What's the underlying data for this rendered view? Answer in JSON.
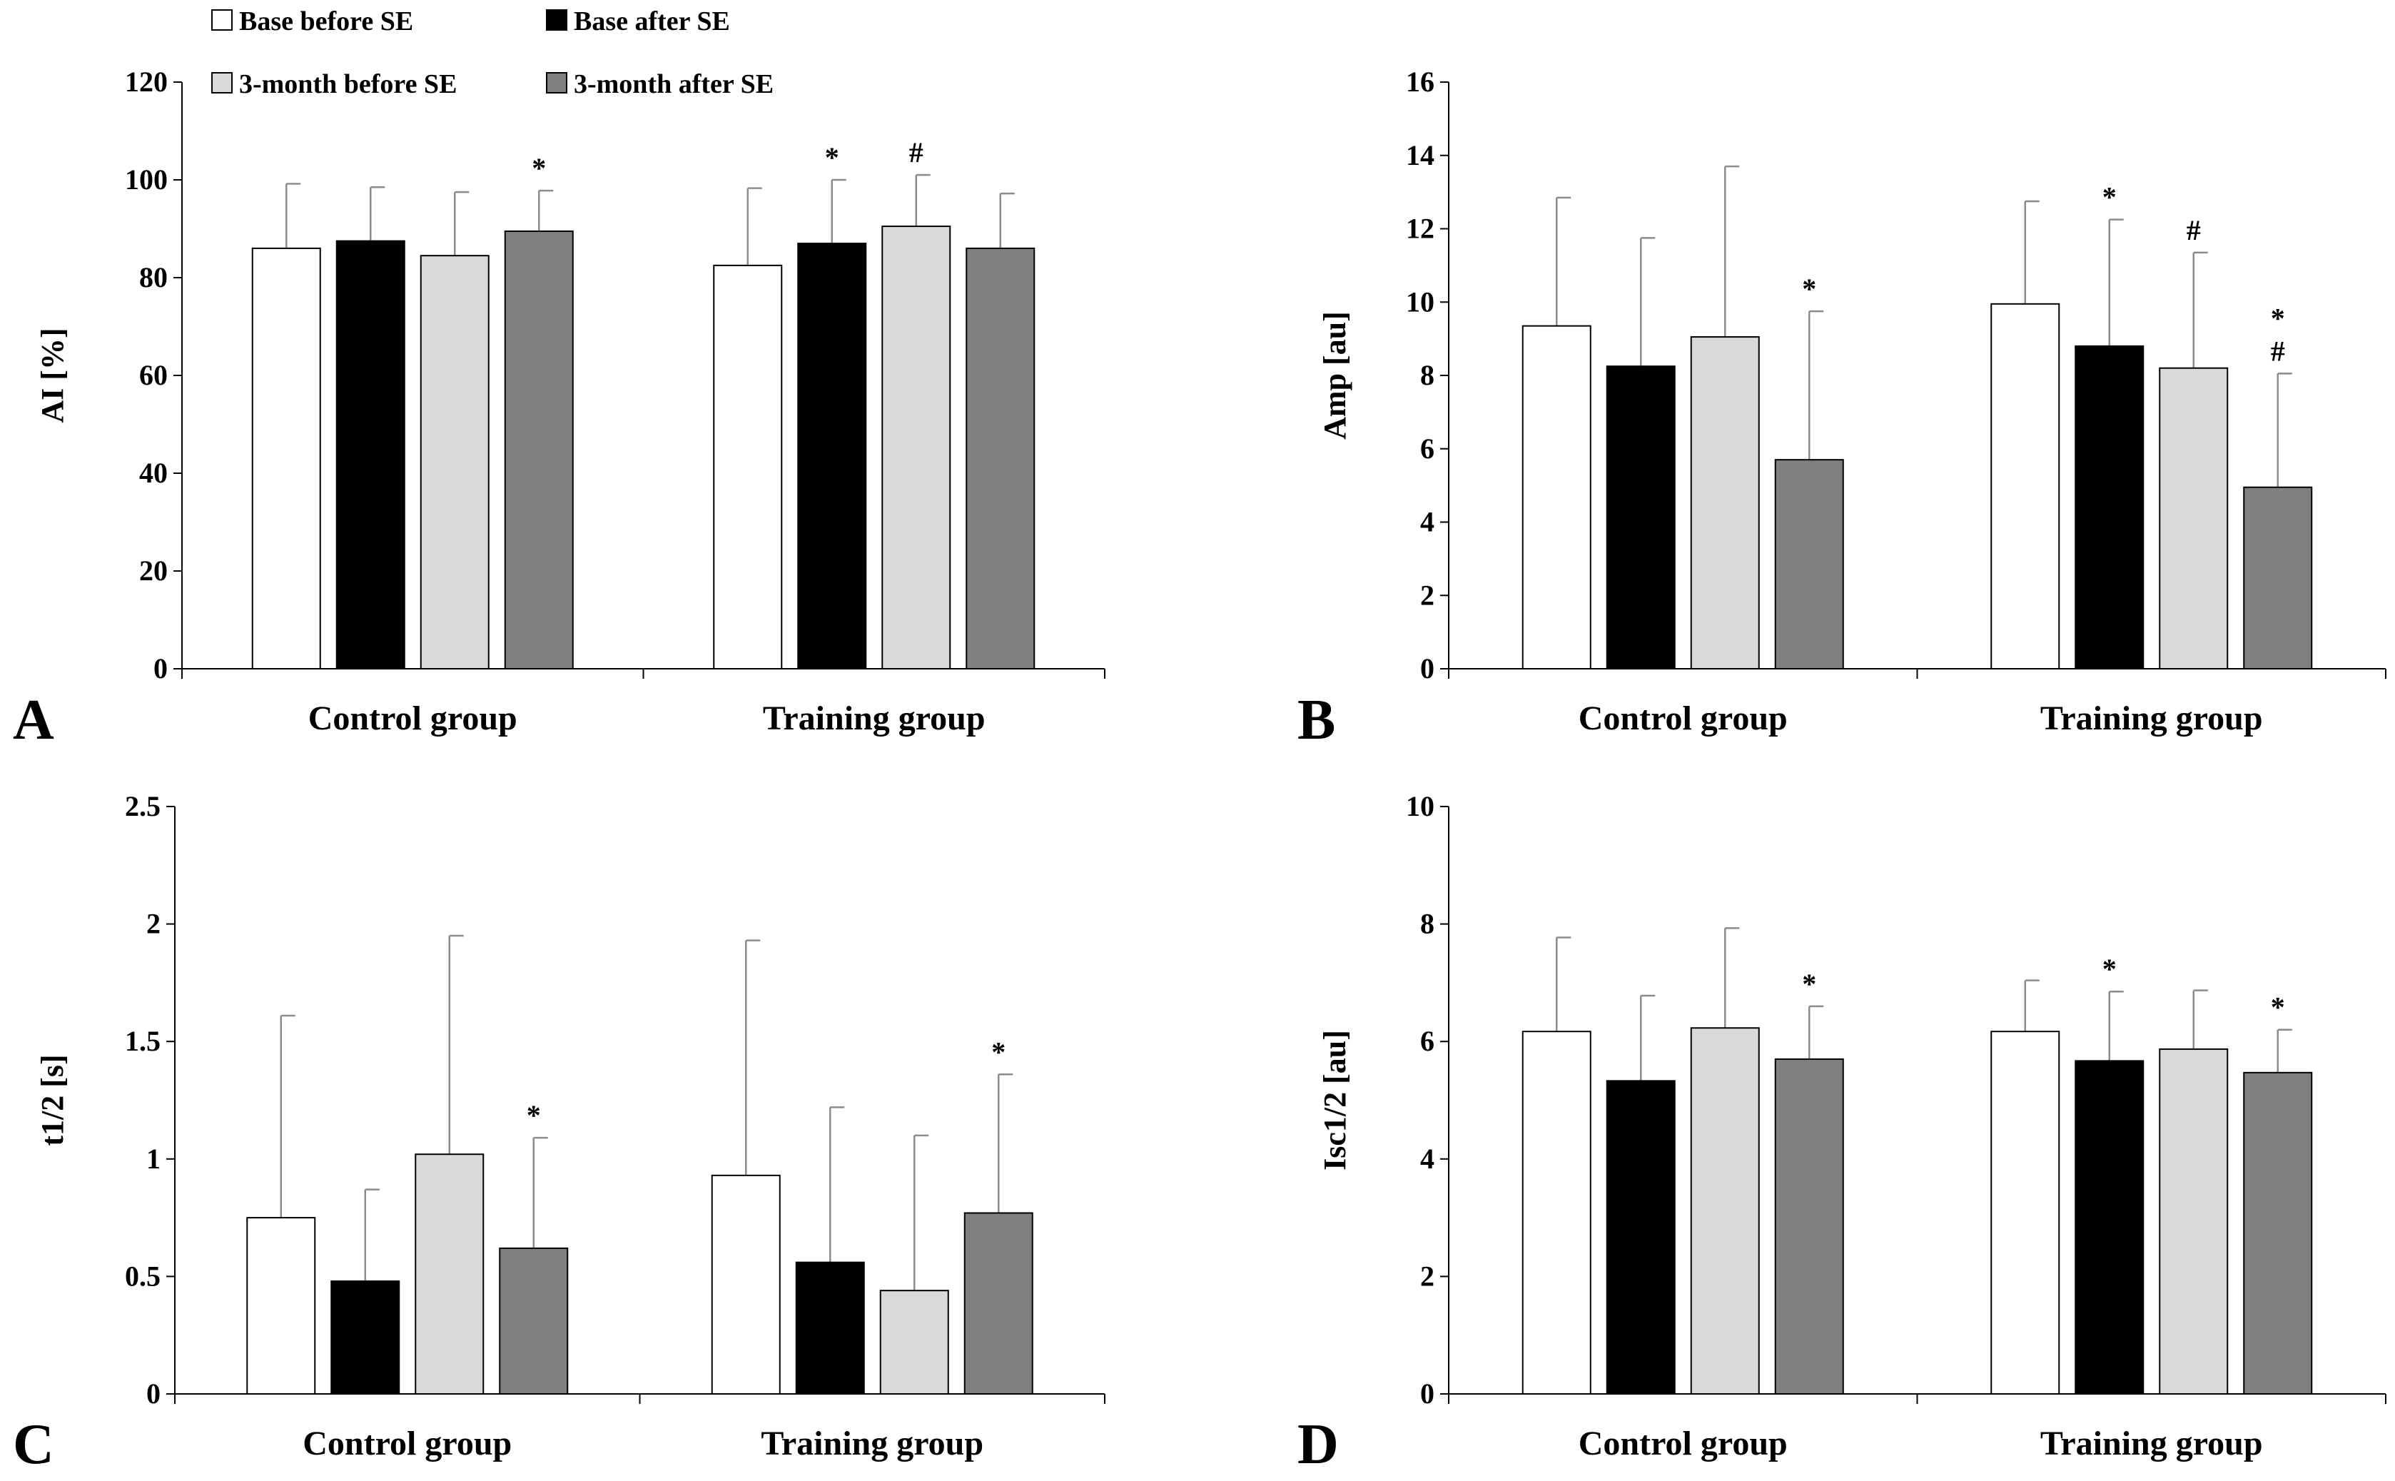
{
  "legend": [
    {
      "label": "Base before SE",
      "color": "#ffffff"
    },
    {
      "label": "Base after SE",
      "color": "#000000"
    },
    {
      "label": "3-month before SE",
      "color": "#d9d9d9"
    },
    {
      "label": "3-month after SE",
      "color": "#808080"
    }
  ],
  "chart_data": [
    {
      "type": "bar",
      "panel": "A",
      "ylabel": "AI [%]",
      "ylim": [
        0,
        120
      ],
      "yticks": [
        "0",
        "20",
        "40",
        "60",
        "80",
        "100",
        "120"
      ],
      "categories": [
        "Control group",
        "Training group"
      ],
      "series": [
        {
          "name": "Base before SE",
          "values": [
            86,
            82.5
          ],
          "errors": [
            13.2,
            15.8
          ]
        },
        {
          "name": "Base after SE",
          "values": [
            87.5,
            87
          ],
          "errors": [
            11,
            13
          ]
        },
        {
          "name": "3-month before SE",
          "values": [
            84.5,
            90.5
          ],
          "errors": [
            13,
            10.5
          ]
        },
        {
          "name": "3-month after SE",
          "values": [
            89.5,
            86
          ],
          "errors": [
            8.3,
            11.2
          ]
        }
      ],
      "annotations": [
        {
          "category": 0,
          "series": 3,
          "text": "*"
        },
        {
          "category": 1,
          "series": 1,
          "text": "*"
        },
        {
          "category": 1,
          "series": 2,
          "text": "#"
        }
      ]
    },
    {
      "type": "bar",
      "panel": "B",
      "ylabel": "Amp [au]",
      "ylim": [
        0,
        16
      ],
      "yticks": [
        "0",
        "2",
        "4",
        "6",
        "8",
        "10",
        "12",
        "14",
        "16"
      ],
      "categories": [
        "Control group",
        "Training group"
      ],
      "series": [
        {
          "name": "Base before SE",
          "values": [
            9.35,
            9.95
          ],
          "errors": [
            3.5,
            2.8
          ]
        },
        {
          "name": "Base after SE",
          "values": [
            8.25,
            8.8
          ],
          "errors": [
            3.5,
            3.45
          ]
        },
        {
          "name": "3-month before SE",
          "values": [
            9.05,
            8.2
          ],
          "errors": [
            4.65,
            3.15
          ]
        },
        {
          "name": "3-month after SE",
          "values": [
            5.7,
            4.95
          ],
          "errors": [
            4.05,
            3.1
          ]
        }
      ],
      "annotations": [
        {
          "category": 0,
          "series": 3,
          "text": "*"
        },
        {
          "category": 1,
          "series": 1,
          "text": "*"
        },
        {
          "category": 1,
          "series": 2,
          "text": "#"
        },
        {
          "category": 1,
          "series": 3,
          "text": "#"
        },
        {
          "category": 1,
          "series": 3,
          "text": "*"
        }
      ]
    },
    {
      "type": "bar",
      "panel": "C",
      "ylabel": "t1/2 [s]",
      "ylim": [
        0,
        2.5
      ],
      "yticks": [
        "0",
        "0.5",
        "1",
        "1.5",
        "2",
        "2.5"
      ],
      "categories": [
        "Control group",
        "Training group"
      ],
      "series": [
        {
          "name": "Base before SE",
          "values": [
            0.75,
            0.93
          ],
          "errors": [
            0.86,
            1.0
          ]
        },
        {
          "name": "Base after SE",
          "values": [
            0.48,
            0.56
          ],
          "errors": [
            0.39,
            0.66
          ]
        },
        {
          "name": "3-month before SE",
          "values": [
            1.02,
            0.44
          ],
          "errors": [
            0.93,
            0.66
          ]
        },
        {
          "name": "3-month after SE",
          "values": [
            0.62,
            0.77
          ],
          "errors": [
            0.47,
            0.59
          ]
        }
      ],
      "annotations": [
        {
          "category": 0,
          "series": 3,
          "text": "*"
        },
        {
          "category": 1,
          "series": 3,
          "text": "*"
        }
      ]
    },
    {
      "type": "bar",
      "panel": "D",
      "ylabel": "Isc1/2 [au]",
      "ylim": [
        0,
        10
      ],
      "yticks": [
        "0",
        "2",
        "4",
        "6",
        "8",
        "10"
      ],
      "categories": [
        "Control group",
        "Training group"
      ],
      "series": [
        {
          "name": "Base before SE",
          "values": [
            6.17,
            6.17
          ],
          "errors": [
            1.6,
            0.87
          ]
        },
        {
          "name": "Base after SE",
          "values": [
            5.33,
            5.67
          ],
          "errors": [
            1.45,
            1.18
          ]
        },
        {
          "name": "3-month before SE",
          "values": [
            6.23,
            5.87
          ],
          "errors": [
            1.7,
            1.0
          ]
        },
        {
          "name": "3-month after SE",
          "values": [
            5.7,
            5.47
          ],
          "errors": [
            0.9,
            0.73
          ]
        }
      ],
      "annotations": [
        {
          "category": 0,
          "series": 3,
          "text": "*"
        },
        {
          "category": 1,
          "series": 1,
          "text": "*"
        },
        {
          "category": 1,
          "series": 3,
          "text": "*"
        }
      ]
    }
  ]
}
